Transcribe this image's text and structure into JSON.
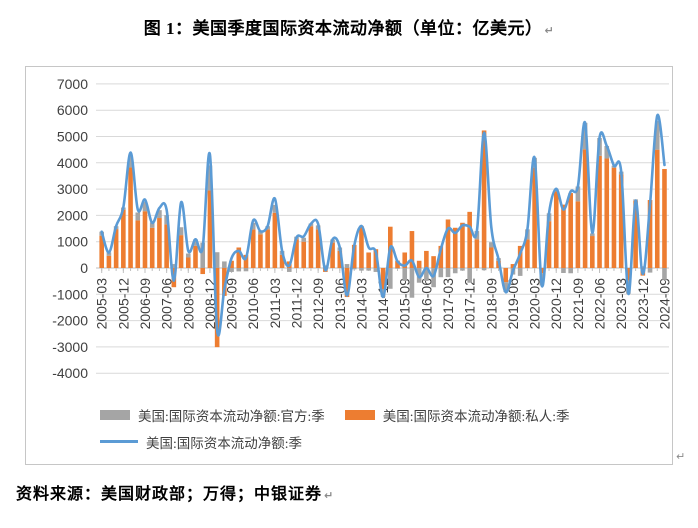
{
  "title": {
    "text": "图 1：美国季度国际资本流动净额（单位：亿美元）",
    "mark": "↵"
  },
  "source": {
    "text": "资料来源：美国财政部；万得；中银证券",
    "mark": "↵"
  },
  "chart_mark": "↵",
  "colors": {
    "official": "#A5A5A5",
    "private": "#ED7D31",
    "total": "#5B9BD5",
    "grid": "#D9D9D9",
    "axis": "#BFBFBF",
    "tick_text": "#404040"
  },
  "legend": [
    {
      "swatch": "bar",
      "color_key": "official",
      "label": "美国:国际资本流动净额:官方:季"
    },
    {
      "swatch": "bar",
      "color_key": "private",
      "label": "美国:国际资本流动净额:私人:季"
    },
    {
      "swatch": "line",
      "color_key": "total",
      "label": "美国:国际资本流动净额:季"
    }
  ],
  "chart_data": {
    "type": "bar+line",
    "unit": "亿美元",
    "title": "美国季度国际资本流动净额",
    "ylim": [
      -4000,
      7000
    ],
    "grid": true,
    "legend_position": "bottom",
    "y_ticks": [
      7000,
      6000,
      5000,
      4000,
      3000,
      2000,
      1000,
      0,
      -1000,
      -2000,
      -3000,
      -4000
    ],
    "x_tick_labels": [
      "2005-03",
      "2005-12",
      "2006-09",
      "2007-06",
      "2008-03",
      "2008-12",
      "2009-09",
      "2010-06",
      "2011-03",
      "2011-12",
      "2012-09",
      "2013-06",
      "2014-03",
      "2014-12",
      "2015-09",
      "2016-06",
      "2017-03",
      "2017-12",
      "2018-09",
      "2019-06",
      "2020-03",
      "2020-12",
      "2021-09",
      "2022-06",
      "2023-03",
      "2023-12",
      "2024-09"
    ],
    "categories": [
      "2005-03",
      "2005-06",
      "2005-09",
      "2005-12",
      "2006-03",
      "2006-06",
      "2006-09",
      "2006-12",
      "2007-03",
      "2007-06",
      "2007-09",
      "2007-12",
      "2008-03",
      "2008-06",
      "2008-09",
      "2008-12",
      "2009-03",
      "2009-06",
      "2009-09",
      "2009-12",
      "2010-03",
      "2010-06",
      "2010-09",
      "2010-12",
      "2011-03",
      "2011-06",
      "2011-09",
      "2011-12",
      "2012-03",
      "2012-06",
      "2012-09",
      "2012-12",
      "2013-03",
      "2013-06",
      "2013-09",
      "2013-12",
      "2014-03",
      "2014-06",
      "2014-09",
      "2014-12",
      "2015-03",
      "2015-06",
      "2015-09",
      "2015-12",
      "2016-03",
      "2016-06",
      "2016-09",
      "2016-12",
      "2017-03",
      "2017-06",
      "2017-09",
      "2017-12",
      "2018-03",
      "2018-06",
      "2018-09",
      "2018-12",
      "2019-03",
      "2019-06",
      "2019-09",
      "2019-12",
      "2020-03",
      "2020-06",
      "2020-09",
      "2020-12",
      "2021-03",
      "2021-06",
      "2021-09",
      "2021-12",
      "2022-03",
      "2022-06",
      "2022-09",
      "2022-12",
      "2023-03",
      "2023-06",
      "2023-09",
      "2023-12",
      "2024-03",
      "2024-06",
      "2024-09"
    ],
    "series": [
      {
        "name": "美国:国际资本流动净额:官方:季",
        "type": "bar",
        "stacked": true,
        "color": "#A5A5A5",
        "values": [
          150,
          130,
          110,
          80,
          450,
          300,
          350,
          200,
          300,
          350,
          150,
          300,
          150,
          250,
          965,
          950,
          600,
          250,
          -150,
          -130,
          -125,
          250,
          130,
          120,
          300,
          150,
          -150,
          100,
          150,
          100,
          150,
          100,
          120,
          130,
          150,
          -50,
          -100,
          -100,
          -150,
          -300,
          -790,
          -30,
          -490,
          -1130,
          -560,
          -490,
          -730,
          -350,
          -345,
          -200,
          -100,
          -560,
          315,
          -85,
          200,
          100,
          -375,
          -250,
          -300,
          380,
          375,
          -465,
          300,
          100,
          -190,
          -200,
          565,
          1005,
          100,
          680,
          475,
          75,
          100,
          -500,
          50,
          65,
          -175,
          1100,
          -450
        ]
      },
      {
        "name": "美国:国际资本流动净额:私人:季",
        "type": "bar",
        "stacked": true,
        "color": "#ED7D31",
        "values": [
          1230,
          460,
          1480,
          2220,
          3820,
          1810,
          2160,
          1530,
          1900,
          1660,
          -730,
          1250,
          400,
          840,
          -230,
          2950,
          -3010,
          -1060,
          275,
          780,
          500,
          1470,
          1280,
          1470,
          2100,
          500,
          250,
          1090,
          1000,
          1590,
          1470,
          -150,
          965,
          650,
          -1105,
          880,
          1600,
          590,
          715,
          -800,
          1570,
          280,
          590,
          1405,
          275,
          650,
          450,
          840,
          1845,
          1530,
          1720,
          2135,
          1090,
          5230,
          780,
          275,
          -540,
          150,
          840,
          1090,
          3815,
          -200,
          1780,
          2910,
          2410,
          2850,
          2535,
          4515,
          1215,
          4265,
          4165,
          3815,
          3565,
          -480,
          2560,
          -290,
          2585,
          4500,
          3765
        ]
      },
      {
        "name": "美国:国际资本流动净额:季",
        "type": "line",
        "color": "#5B9BD5",
        "values": [
          1380,
          590,
          1590,
          2300,
          4390,
          2220,
          2600,
          1720,
          2280,
          2220,
          -480,
          2500,
          650,
          1090,
          780,
          4320,
          -2350,
          -800,
          380,
          650,
          380,
          1810,
          1400,
          1590,
          2640,
          650,
          90,
          1160,
          1200,
          1680,
          1680,
          -80,
          1090,
          780,
          -1040,
          840,
          1600,
          780,
          590,
          -1100,
          780,
          250,
          90,
          280,
          -350,
          0,
          -300,
          715,
          1500,
          1330,
          1620,
          1575,
          1405,
          5145,
          1550,
          340,
          -915,
          -100,
          550,
          1470,
          4190,
          -665,
          2080,
          3010,
          2220,
          2910,
          3100,
          5520,
          1340,
          4945,
          4640,
          3890,
          3665,
          -980,
          2560,
          -225,
          2410,
          5800,
          3915
        ]
      }
    ]
  }
}
